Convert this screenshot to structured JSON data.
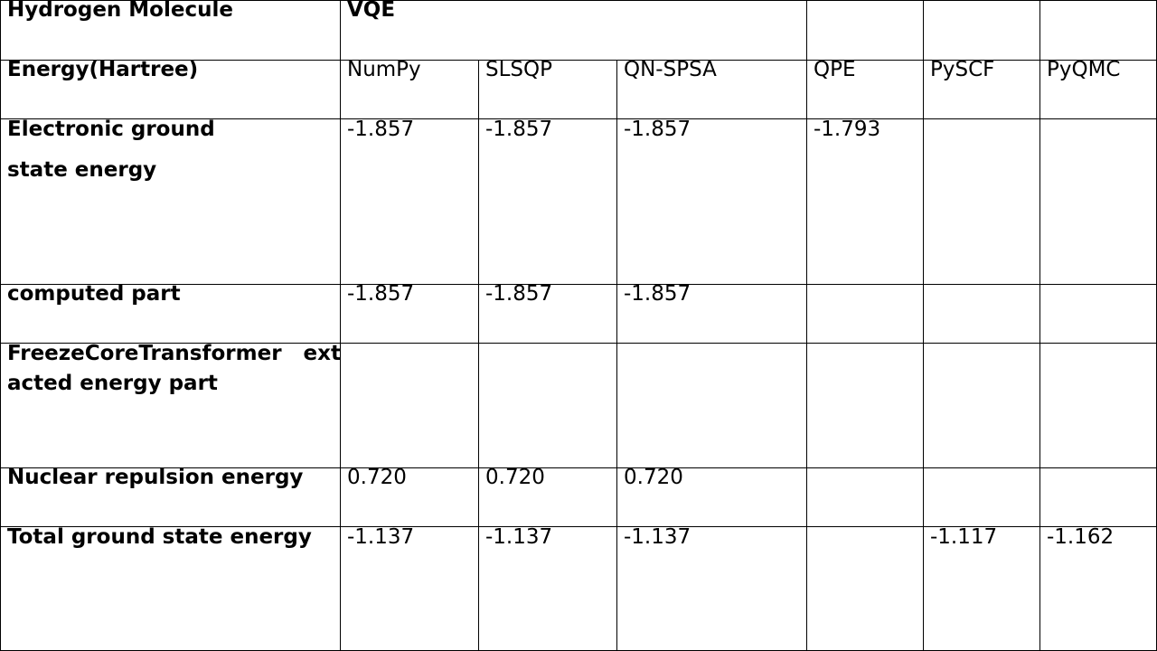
{
  "table": {
    "title_cell": "Hydrogen Molecule",
    "group_header": "VQE",
    "header_row": {
      "label": "Energy(Hartree)",
      "columns": [
        "NumPy",
        "SLSQP",
        "QN-SPSA",
        "QPE",
        "PySCF",
        "PyQMC"
      ]
    },
    "rows": [
      {
        "label_line1": "Electronic ground",
        "label_line2": "state energy",
        "values": [
          "-1.857",
          "-1.857",
          "-1.857",
          "-1.793",
          "",
          ""
        ]
      },
      {
        "label_line1": "computed part",
        "label_line2": "",
        "values": [
          "-1.857",
          "-1.857",
          "-1.857",
          "",
          "",
          ""
        ]
      },
      {
        "label_line1": "FreezeCoreTransformer   extr",
        "label_line2": "acted energy part",
        "values": [
          "",
          "",
          "",
          "",
          "",
          ""
        ]
      },
      {
        "label_line1": "Nuclear repulsion energy",
        "label_line2": "",
        "values": [
          "0.720",
          "0.720",
          "0.720",
          "",
          "",
          ""
        ]
      },
      {
        "label_line1": "Total ground state energy",
        "label_line2": "",
        "values": [
          "-1.137",
          "-1.137",
          "-1.137",
          "",
          "-1.117",
          "-1.162"
        ]
      }
    ]
  }
}
